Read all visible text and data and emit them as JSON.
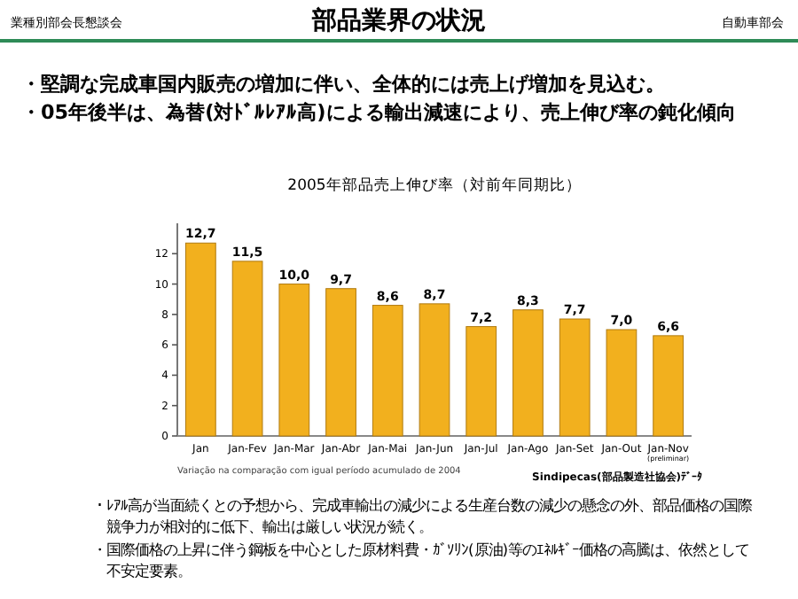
{
  "chart_data": {
    "type": "bar",
    "title": "2005年部品売上伸び率（対前年同期比）",
    "categories": [
      "Jan",
      "Jan-Fev",
      "Jan-Mar",
      "Jan-Abr",
      "Jan-Mai",
      "Jan-Jun",
      "Jan-Jul",
      "Jan-Ago",
      "Jan-Set",
      "Jan-Out",
      "Jan-Nov\n(preliminar)"
    ],
    "values": [
      12.7,
      11.5,
      10.0,
      9.7,
      8.6,
      8.7,
      7.2,
      8.3,
      7.7,
      7.0,
      6.6
    ],
    "value_labels": [
      "12,7",
      "11,5",
      "10,0",
      "9,7",
      "8,6",
      "8,7",
      "7,2",
      "8,3",
      "7,7",
      "7,0",
      "6,6"
    ],
    "color": "#f2b01e",
    "ylim": [
      0,
      14
    ],
    "yticks": [
      0,
      2,
      4,
      6,
      8,
      10,
      12
    ],
    "grid": false,
    "annotations": [
      "業種別部会長懇談会",
      "自動車部会",
      "部品業界の状況",
      "・堅調な完成車国内販売の増加に伴い、全体的には売上げ増加を見込む。",
      "・05年後半は、為替(対ﾄﾞﾙﾚｱﾙ高)による輸出減速により、売上伸び率の鈍化傾向",
      "Variação na comparação com igual período acumulado de 2004",
      "Sindipecas(部品製造社協会)ﾃﾞｰﾀ",
      "・ﾚｱﾙ高が当面続くとの予想から、完成車輸出の減少による生産台数の減少の懸念の外、部品価格の国際競争力が相対的に低下、輸出は厳しい状況が続く。",
      "・国際価格の上昇に伴う鋼板を中心とした原材料費・ｶﾞｿﾘﾝ(原油)等のｴﾈﾙｷﾞｰ価格の高騰は、依然として不安定要素。"
    ]
  }
}
